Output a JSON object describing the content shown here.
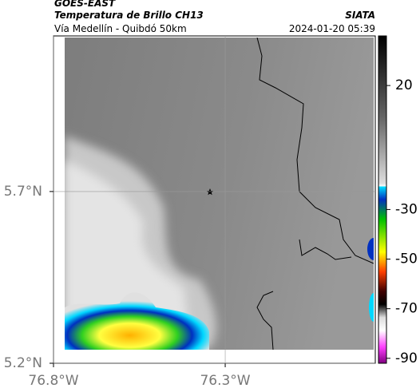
{
  "header": {
    "source": "GOES-EAST",
    "title": "Temperatura de Brillo CH13",
    "org": "SIATA",
    "subtitle": "Vía Medellín - Quibdó 50km",
    "timestamp": "2024-01-20 05:39"
  },
  "map": {
    "xlim": [
      -76.8,
      -75.863
    ],
    "ylim": [
      5.2,
      6.153
    ],
    "xticks": [
      {
        "value": -76.8,
        "label": "76.8°W"
      },
      {
        "value": -76.3,
        "label": "76.3°W"
      }
    ],
    "yticks": [
      {
        "value": 5.2,
        "label": "5.2°N"
      },
      {
        "value": 5.7,
        "label": "5.7°N"
      }
    ]
  },
  "colorbar": {
    "lim": [
      -92,
      40
    ],
    "ticks": [
      20,
      -30,
      -50,
      -70,
      -90
    ]
  }
}
